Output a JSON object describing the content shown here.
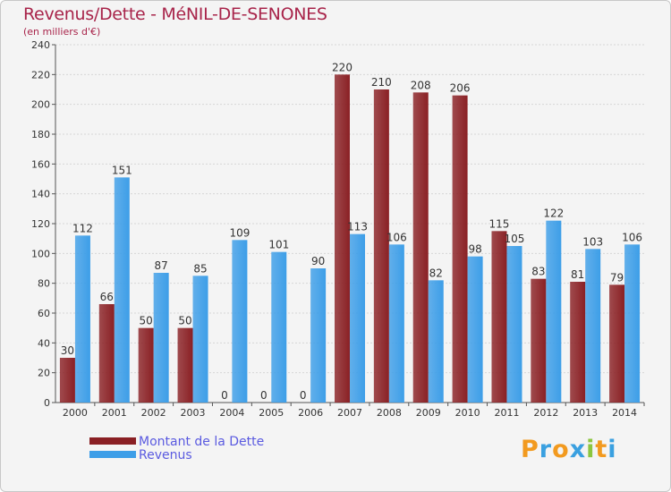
{
  "chart_data": {
    "type": "bar",
    "title": "Revenus/Dette - MéNIL-DE-SENONES",
    "subtitle": "(en milliers d'€)",
    "categories": [
      "2000",
      "2001",
      "2002",
      "2003",
      "2004",
      "2005",
      "2006",
      "2007",
      "2008",
      "2009",
      "2010",
      "2011",
      "2012",
      "2013",
      "2014"
    ],
    "series": [
      {
        "name": "Montant de la Dette",
        "color": "#8a2024",
        "values": [
          30,
          66,
          50,
          50,
          0,
          0,
          0,
          220,
          210,
          208,
          206,
          115,
          83,
          81,
          79
        ]
      },
      {
        "name": "Revenus",
        "color": "#3d9ee8",
        "values": [
          112,
          151,
          87,
          85,
          109,
          101,
          90,
          113,
          106,
          82,
          98,
          105,
          122,
          103,
          106
        ]
      }
    ],
    "ylim": [
      0,
      240
    ],
    "yticks": [
      0,
      20,
      40,
      60,
      80,
      100,
      120,
      140,
      160,
      180,
      200,
      220,
      240
    ],
    "grid": true,
    "legend_position": "bottom-left"
  },
  "logo": {
    "letters": [
      {
        "ch": "P",
        "color": "#f29a1f"
      },
      {
        "ch": "r",
        "color": "#3aa0e0"
      },
      {
        "ch": "o",
        "color": "#f29a1f"
      },
      {
        "ch": "x",
        "color": "#3aa0e0"
      },
      {
        "ch": "i",
        "color": "#8cc63f"
      },
      {
        "ch": "t",
        "color": "#f29a1f"
      },
      {
        "ch": "i",
        "color": "#3aa0e0"
      }
    ]
  }
}
